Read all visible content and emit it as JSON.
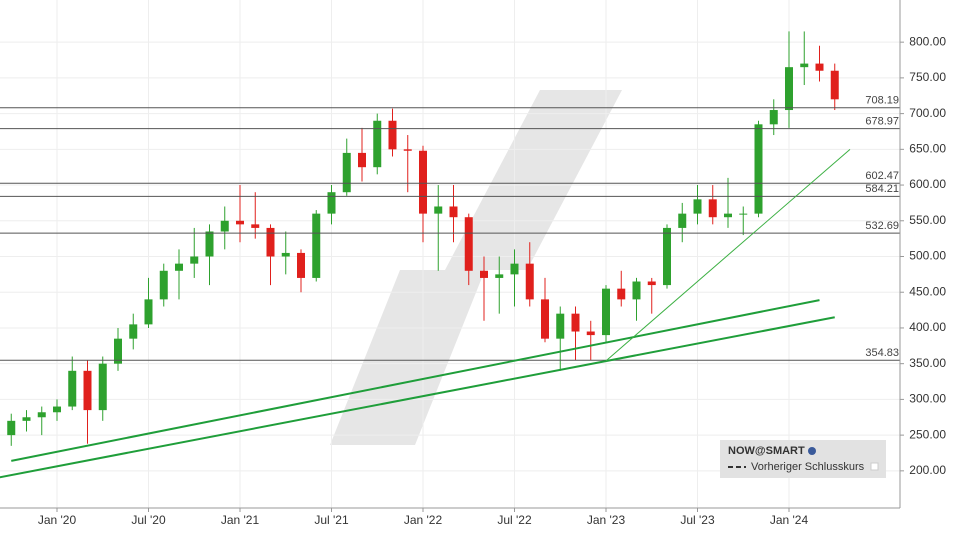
{
  "chart_data": {
    "type": "candlestick",
    "x": [
      "2019-10",
      "2019-11",
      "2019-12",
      "2020-01",
      "2020-02",
      "2020-03",
      "2020-04",
      "2020-05",
      "2020-06",
      "2020-07",
      "2020-08",
      "2020-09",
      "2020-10",
      "2020-11",
      "2020-12",
      "2021-01",
      "2021-02",
      "2021-03",
      "2021-04",
      "2021-05",
      "2021-06",
      "2021-07",
      "2021-08",
      "2021-09",
      "2021-10",
      "2021-11",
      "2021-12",
      "2022-01",
      "2022-02",
      "2022-03",
      "2022-04",
      "2022-05",
      "2022-06",
      "2022-07",
      "2022-08",
      "2022-09",
      "2022-10",
      "2022-11",
      "2022-12",
      "2023-01",
      "2023-02",
      "2023-03",
      "2023-04",
      "2023-05",
      "2023-06",
      "2023-07",
      "2023-08",
      "2023-09",
      "2023-10",
      "2023-11",
      "2023-12",
      "2024-01",
      "2024-02",
      "2024-03",
      "2024-04"
    ],
    "open": [
      250,
      270,
      275,
      282,
      290,
      340,
      285,
      350,
      385,
      405,
      440,
      480,
      490,
      500,
      535,
      550,
      545,
      540,
      500,
      505,
      470,
      560,
      590,
      645,
      625,
      690,
      650,
      648,
      560,
      570,
      555,
      480,
      470,
      475,
      490,
      440,
      385,
      420,
      395,
      390,
      455,
      440,
      465,
      460,
      540,
      560,
      580,
      555,
      560,
      560,
      685,
      705,
      765,
      770,
      760
    ],
    "high": [
      280,
      285,
      290,
      300,
      360,
      355,
      360,
      400,
      420,
      470,
      490,
      510,
      540,
      545,
      570,
      600,
      590,
      545,
      535,
      510,
      565,
      600,
      665,
      680,
      700,
      707,
      670,
      655,
      600,
      600,
      560,
      500,
      500,
      510,
      520,
      470,
      430,
      430,
      410,
      460,
      480,
      470,
      470,
      545,
      575,
      600,
      600,
      610,
      570,
      690,
      720,
      815,
      815,
      795,
      770
    ],
    "low": [
      235,
      255,
      250,
      270,
      285,
      238,
      270,
      340,
      370,
      400,
      430,
      440,
      470,
      460,
      510,
      520,
      525,
      460,
      475,
      450,
      465,
      545,
      585,
      605,
      615,
      640,
      590,
      520,
      480,
      520,
      460,
      410,
      420,
      430,
      430,
      380,
      340,
      355,
      355,
      380,
      430,
      410,
      420,
      455,
      520,
      545,
      545,
      540,
      530,
      555,
      670,
      680,
      740,
      745,
      705
    ],
    "close": [
      270,
      275,
      282,
      290,
      340,
      285,
      350,
      385,
      405,
      440,
      480,
      490,
      500,
      535,
      550,
      545,
      540,
      500,
      505,
      470,
      560,
      590,
      645,
      625,
      690,
      650,
      648,
      560,
      570,
      555,
      480,
      470,
      475,
      490,
      440,
      385,
      420,
      395,
      390,
      455,
      440,
      465,
      460,
      540,
      560,
      580,
      555,
      560,
      560,
      685,
      705,
      765,
      770,
      760,
      720
    ],
    "up_color": "#2ea12e",
    "down_color": "#e0201c",
    "ylim": [
      148,
      859
    ],
    "yticks": [
      {
        "value": 200,
        "label": "200.00"
      },
      {
        "value": 250,
        "label": "250.00"
      },
      {
        "value": 300,
        "label": "300.00"
      },
      {
        "value": 350,
        "label": "350.00"
      },
      {
        "value": 400,
        "label": "400.00"
      },
      {
        "value": 450,
        "label": "450.00"
      },
      {
        "value": 500,
        "label": "500.00"
      },
      {
        "value": 550,
        "label": "550.00"
      },
      {
        "value": 600,
        "label": "600.00"
      },
      {
        "value": 650,
        "label": "650.00"
      },
      {
        "value": 700,
        "label": "700.00"
      },
      {
        "value": 750,
        "label": "750.00"
      },
      {
        "value": 800,
        "label": "800.00"
      }
    ],
    "xticks": [
      {
        "value": "2020-01",
        "label": "Jan '20"
      },
      {
        "value": "2020-07",
        "label": "Jul '20"
      },
      {
        "value": "2021-01",
        "label": "Jan '21"
      },
      {
        "value": "2021-07",
        "label": "Jul '21"
      },
      {
        "value": "2022-01",
        "label": "Jan '22"
      },
      {
        "value": "2022-07",
        "label": "Jul '22"
      },
      {
        "value": "2023-01",
        "label": "Jan '23"
      },
      {
        "value": "2023-07",
        "label": "Jul '23"
      },
      {
        "value": "2024-01",
        "label": "Jan '24"
      }
    ],
    "levels": [
      708.19,
      678.97,
      602.47,
      584.21,
      532.69,
      354.83
    ],
    "level_color": "#555555",
    "trendlines": [
      {
        "x": [
          "2019-10",
          "2024-03"
        ],
        "y": [
          214,
          439
        ],
        "color": "#1f9e3a",
        "width": 2
      },
      {
        "x": [
          "2019-09",
          "2024-04"
        ],
        "y": [
          190,
          415
        ],
        "color": "#1f9e3a",
        "width": 2
      },
      {
        "x": [
          "2023-01",
          "2024-05"
        ],
        "y": [
          354,
          650
        ],
        "color": "#3cb043",
        "width": 1
      }
    ],
    "grid": true,
    "legend": {
      "symbol": "NOW@SMART",
      "previous_close": "Vorheriger Schlusskurs"
    }
  }
}
